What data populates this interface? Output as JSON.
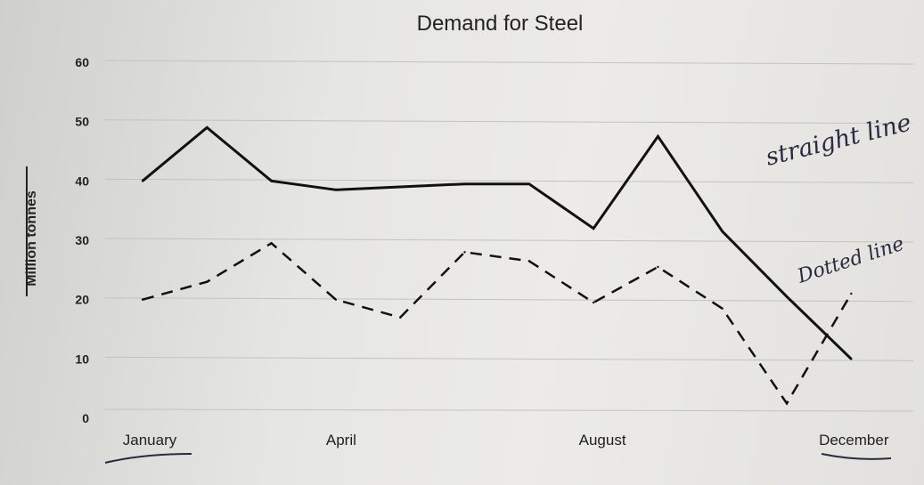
{
  "chart_data": {
    "type": "line",
    "title": "Demand for Steel",
    "xlabel": "",
    "ylabel": "Million tonnes",
    "ylim": [
      0,
      60
    ],
    "y_ticks": [
      "0",
      "10",
      "20",
      "30",
      "40",
      "50",
      "60"
    ],
    "x_tick_labels": [
      "January",
      "April",
      "August",
      "December"
    ],
    "x": [
      "Jan",
      "Feb",
      "Mar",
      "Apr",
      "May",
      "Jun",
      "Jul",
      "Aug",
      "Sep",
      "Oct",
      "Nov",
      "Dec"
    ],
    "grid": true,
    "series": [
      {
        "style": "solid",
        "values": [
          40,
          49,
          40,
          38.5,
          39,
          39.5,
          39.5,
          32,
          47.5,
          31.5,
          20.5,
          10
        ]
      },
      {
        "style": "dashed",
        "values": [
          20,
          23,
          29.5,
          20,
          17,
          28,
          26.5,
          19.5,
          25.5,
          18.5,
          2.5,
          21
        ]
      }
    ],
    "annotations": [
      "straight line",
      "Dotted line"
    ]
  }
}
